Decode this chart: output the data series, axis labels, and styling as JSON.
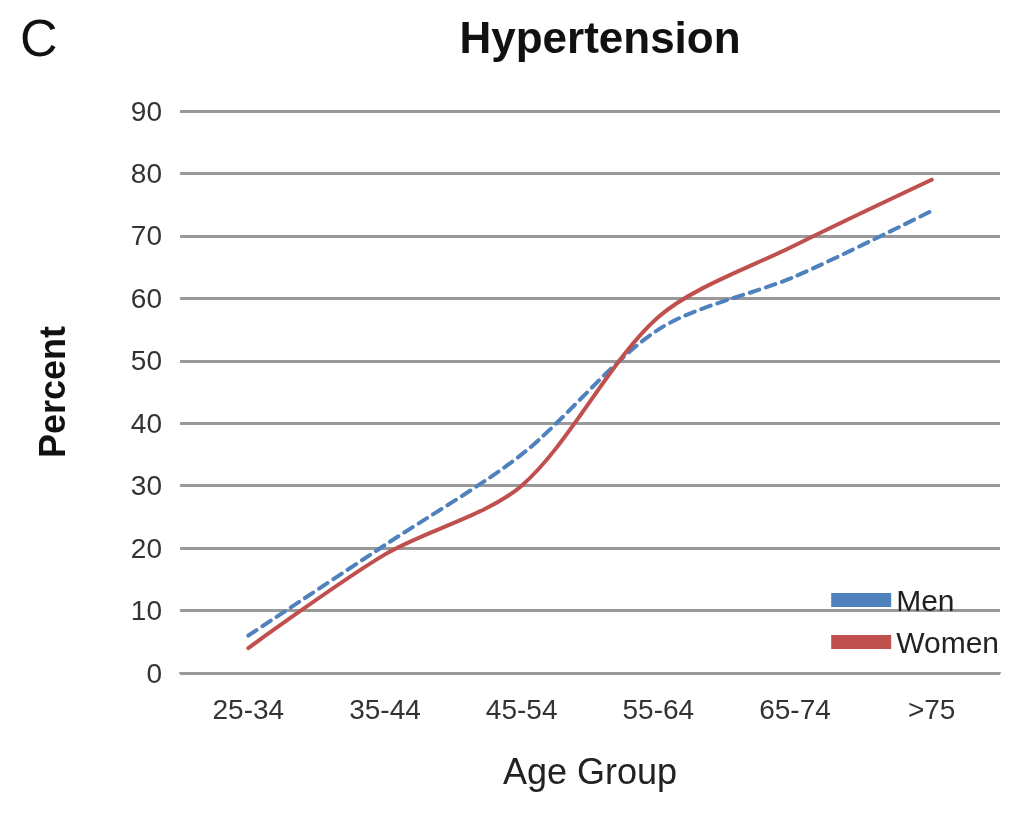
{
  "chart_data": {
    "type": "line",
    "title": "Hypertension",
    "xlabel": "Age Group",
    "ylabel": "Percent",
    "annotations": [
      "C"
    ],
    "categories": [
      "25-34",
      "35-44",
      "45-54",
      "55-64",
      "65-74",
      ">75"
    ],
    "series": [
      {
        "name": "Men",
        "color": "#4f81bd",
        "line_style": "dashed",
        "values": [
          6,
          20.5,
          35,
          55,
          63.5,
          74
        ]
      },
      {
        "name": "Women",
        "color": "#c0504d",
        "line_style": "solid",
        "values": [
          4,
          19,
          30,
          57,
          68.5,
          79
        ]
      }
    ],
    "ylim": [
      0,
      90
    ],
    "yticks": [
      0,
      10,
      20,
      30,
      40,
      50,
      60,
      70,
      80,
      90
    ],
    "grid": "y",
    "legend": "bottom right",
    "marker": "none"
  }
}
